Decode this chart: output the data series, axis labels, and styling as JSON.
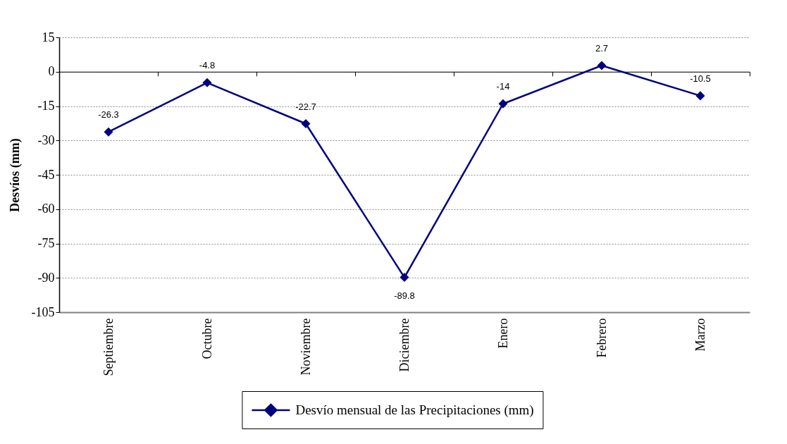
{
  "chart_data": {
    "type": "line",
    "ylabel": "Desvíos (mm)",
    "categories": [
      "Septiembre",
      "Octubre",
      "Noviembre",
      "Diciembre",
      "Enero",
      "Febrero",
      "Marzo"
    ],
    "series": [
      {
        "name": "Desvío mensual de las Precipitaciones (mm)",
        "color": "#000080",
        "values": [
          -26.3,
          -4.8,
          -22.7,
          -89.8,
          -14,
          2.7,
          -10.5
        ]
      }
    ],
    "ylim": [
      -105,
      15
    ],
    "yticks": [
      -105,
      -90,
      -75,
      -60,
      -45,
      -30,
      -15,
      0,
      15
    ],
    "grid": "y",
    "legend": "bottom",
    "marker": "diamond",
    "line_style": "solid",
    "data_labels": true
  }
}
